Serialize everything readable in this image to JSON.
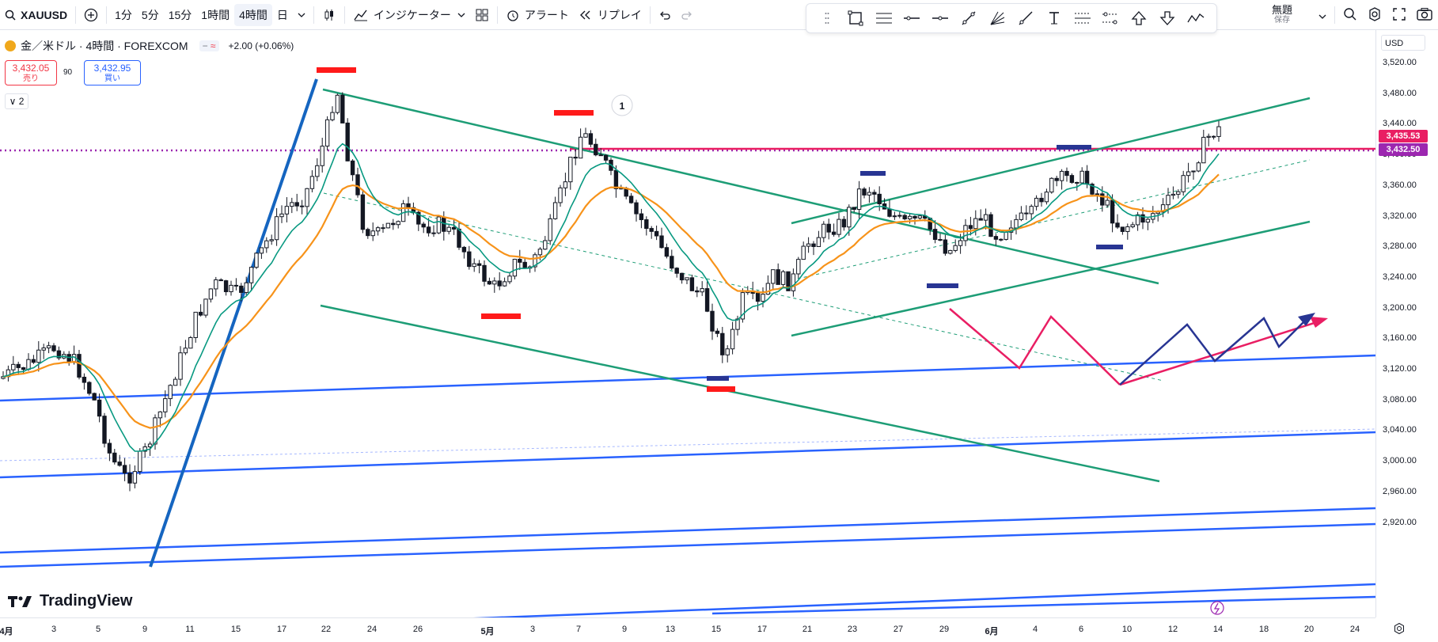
{
  "toolbar": {
    "symbol": "XAUUSD",
    "intervals": [
      "1分",
      "5分",
      "15分",
      "1時間",
      "4時間",
      "日"
    ],
    "selected_interval": "4時間",
    "indicators_label": "インジケーター",
    "alert_label": "アラート",
    "replay_label": "リプレイ",
    "layout_name": "無題",
    "save_label": "保存"
  },
  "legend": {
    "title": "金／米ドル · 4時間 · FOREXCOM",
    "change": "+2.00 (+0.06%)",
    "sell_price": "3,432.05",
    "sell_label": "売り",
    "spread": "90",
    "buy_price": "3,432.95",
    "buy_label": "買い",
    "collapse": "2"
  },
  "yaxis": {
    "currency": "USD",
    "ticks": [
      "3,520.00",
      "3,480.00",
      "3,440.00",
      "3,400.00",
      "3,360.00",
      "3,320.00",
      "3,280.00",
      "3,240.00",
      "3,200.00",
      "3,160.00",
      "3,120.00",
      "3,080.00",
      "3,040.00",
      "3,000.00",
      "2,960.00",
      "2,920.00"
    ],
    "tag_pink": "3,435.53",
    "tag_last": "3,432.50"
  },
  "xaxis": {
    "ticks": [
      "4月",
      "3",
      "5",
      "9",
      "11",
      "15",
      "17",
      "22",
      "24",
      "26",
      "5月",
      "3",
      "7",
      "9",
      "13",
      "15",
      "17",
      "21",
      "23",
      "27",
      "29",
      "6月",
      "4",
      "6",
      "10",
      "12",
      "14",
      "18",
      "20",
      "24"
    ]
  },
  "annotation": {
    "marker": "1"
  },
  "branding": {
    "name": "TradingView"
  },
  "colors": {
    "up": "#26a69a",
    "down": "#ef5350",
    "candles": "#131722",
    "ema_fast": "#089981",
    "ema_slow": "#f7931a",
    "trend_green": "#1d9d76",
    "trend_blue": "#2962ff",
    "pink": "#e91e63",
    "navy": "#283593"
  }
}
